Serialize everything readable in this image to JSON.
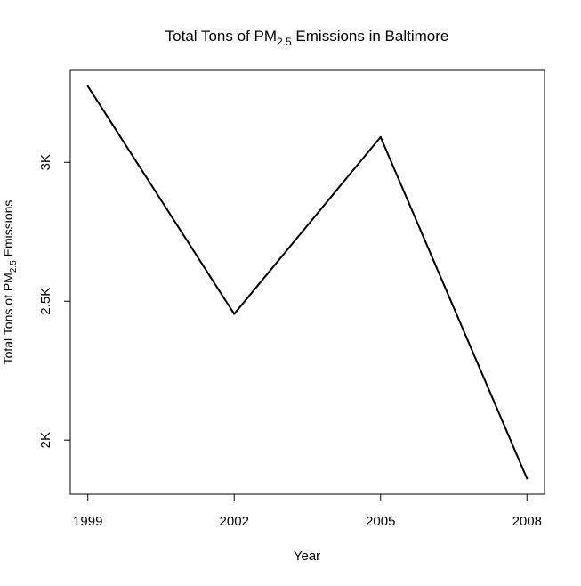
{
  "chart_data": {
    "type": "line",
    "title": {
      "prefix": "Total Tons of PM",
      "subscript": "2.5",
      "suffix": " Emissions in Baltimore"
    },
    "xlabel": "Year",
    "ylabel": {
      "prefix": "Total Tons of PM",
      "subscript": "2.5",
      "suffix": " Emissions"
    },
    "x": [
      1999,
      2002,
      2005,
      2008
    ],
    "x_tick_labels": [
      "1999",
      "2002",
      "2005",
      "2008"
    ],
    "y_ticks": [
      2000,
      2500,
      3000
    ],
    "y_tick_labels": [
      "2K",
      "2.5K",
      "3K"
    ],
    "series": [
      {
        "values": [
          3274,
          2454,
          3091,
          1862
        ]
      }
    ],
    "xlim": [
      1998.64,
      2008.36
    ],
    "ylim": [
      1805,
      3331
    ],
    "grid": false,
    "legend": "none",
    "colors": {
      "line": "#000000",
      "frame": "#000000",
      "background": "#ffffff"
    }
  }
}
